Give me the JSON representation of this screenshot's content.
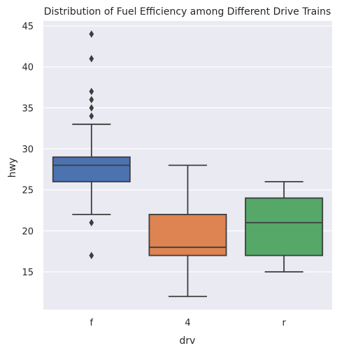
{
  "chart_data": {
    "type": "box",
    "title": "Distribution of Fuel Efficiency among Different Drive Trains",
    "xlabel": "drv",
    "ylabel": "hwy",
    "categories": [
      "f",
      "4",
      "r"
    ],
    "ylim": [
      10.4,
      45.6
    ],
    "yticks": [
      15,
      20,
      25,
      30,
      35,
      40,
      45
    ],
    "grid": true,
    "boxes": [
      {
        "category": "f",
        "whisker_low": 22,
        "q1": 26,
        "median": 28,
        "q3": 29,
        "whisker_high": 33,
        "outliers": [
          17,
          21,
          34,
          35,
          36,
          37,
          41,
          44
        ],
        "color": "#4c72b0"
      },
      {
        "category": "4",
        "whisker_low": 12,
        "q1": 17,
        "median": 18,
        "q3": 22,
        "whisker_high": 28,
        "outliers": [],
        "color": "#dd8452"
      },
      {
        "category": "r",
        "whisker_low": 15,
        "q1": 17,
        "median": 21,
        "q3": 24,
        "whisker_high": 26,
        "outliers": [],
        "color": "#55a868"
      }
    ],
    "colors": {
      "background": "#eaeaf2",
      "grid": "#ffffff",
      "lines": "#3d3d3d"
    }
  }
}
